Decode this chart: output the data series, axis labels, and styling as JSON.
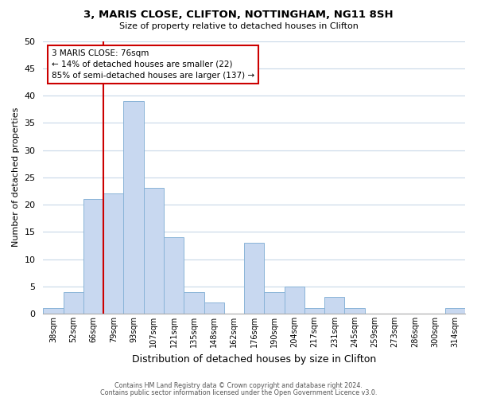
{
  "title1": "3, MARIS CLOSE, CLIFTON, NOTTINGHAM, NG11 8SH",
  "title2": "Size of property relative to detached houses in Clifton",
  "xlabel": "Distribution of detached houses by size in Clifton",
  "ylabel": "Number of detached properties",
  "bar_labels": [
    "38sqm",
    "52sqm",
    "66sqm",
    "79sqm",
    "93sqm",
    "107sqm",
    "121sqm",
    "135sqm",
    "148sqm",
    "162sqm",
    "176sqm",
    "190sqm",
    "204sqm",
    "217sqm",
    "231sqm",
    "245sqm",
    "259sqm",
    "273sqm",
    "286sqm",
    "300sqm",
    "314sqm"
  ],
  "bar_values": [
    1,
    4,
    21,
    22,
    39,
    23,
    14,
    4,
    2,
    0,
    13,
    4,
    5,
    1,
    3,
    1,
    0,
    0,
    0,
    0,
    1
  ],
  "bar_color": "#c8d8f0",
  "bar_edge_color": "#8ab4d8",
  "ylim": [
    0,
    50
  ],
  "yticks": [
    0,
    5,
    10,
    15,
    20,
    25,
    30,
    35,
    40,
    45,
    50
  ],
  "marker_label": "3 MARIS CLOSE: 76sqm",
  "annotation_line1": "← 14% of detached houses are smaller (22)",
  "annotation_line2": "85% of semi-detached houses are larger (137) →",
  "vline_color": "#cc0000",
  "annotation_box_edge": "#cc0000",
  "footer1": "Contains HM Land Registry data © Crown copyright and database right 2024.",
  "footer2": "Contains public sector information licensed under the Open Government Licence v3.0.",
  "bg_color": "#ffffff",
  "grid_color": "#c8d8e8"
}
